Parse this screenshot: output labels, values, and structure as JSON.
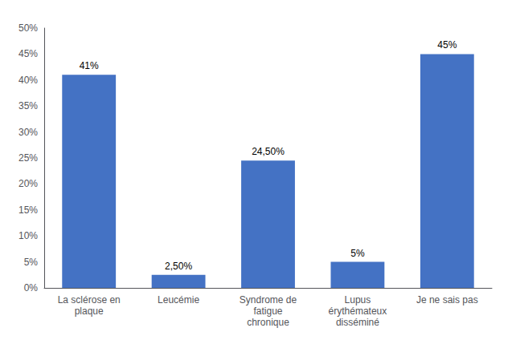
{
  "chart_data": {
    "type": "bar",
    "categories": [
      "La sclérose en\nplaque",
      "Leucémie",
      "Syndrome de\nfatigue\nchronique",
      "Lupus\nérythémateux\ndisséminé",
      "Je ne sais pas"
    ],
    "values": [
      41,
      2.5,
      24.5,
      5,
      45
    ],
    "value_labels": [
      "41%",
      "2,50%",
      "24,50%",
      "5%",
      "45%"
    ],
    "data_labels": true,
    "color": "#4472C4",
    "ylim": [
      0,
      50
    ],
    "yticks": [
      {
        "value": 0,
        "label": "0%"
      },
      {
        "value": 5,
        "label": "5%"
      },
      {
        "value": 10,
        "label": "10%"
      },
      {
        "value": 15,
        "label": "15%"
      },
      {
        "value": 20,
        "label": "20%"
      },
      {
        "value": 25,
        "label": "25%"
      },
      {
        "value": 30,
        "label": "30%"
      },
      {
        "value": 35,
        "label": "35%"
      },
      {
        "value": 40,
        "label": "40%"
      },
      {
        "value": 45,
        "label": "45%"
      },
      {
        "value": 50,
        "label": "50%"
      }
    ],
    "grid": false
  }
}
